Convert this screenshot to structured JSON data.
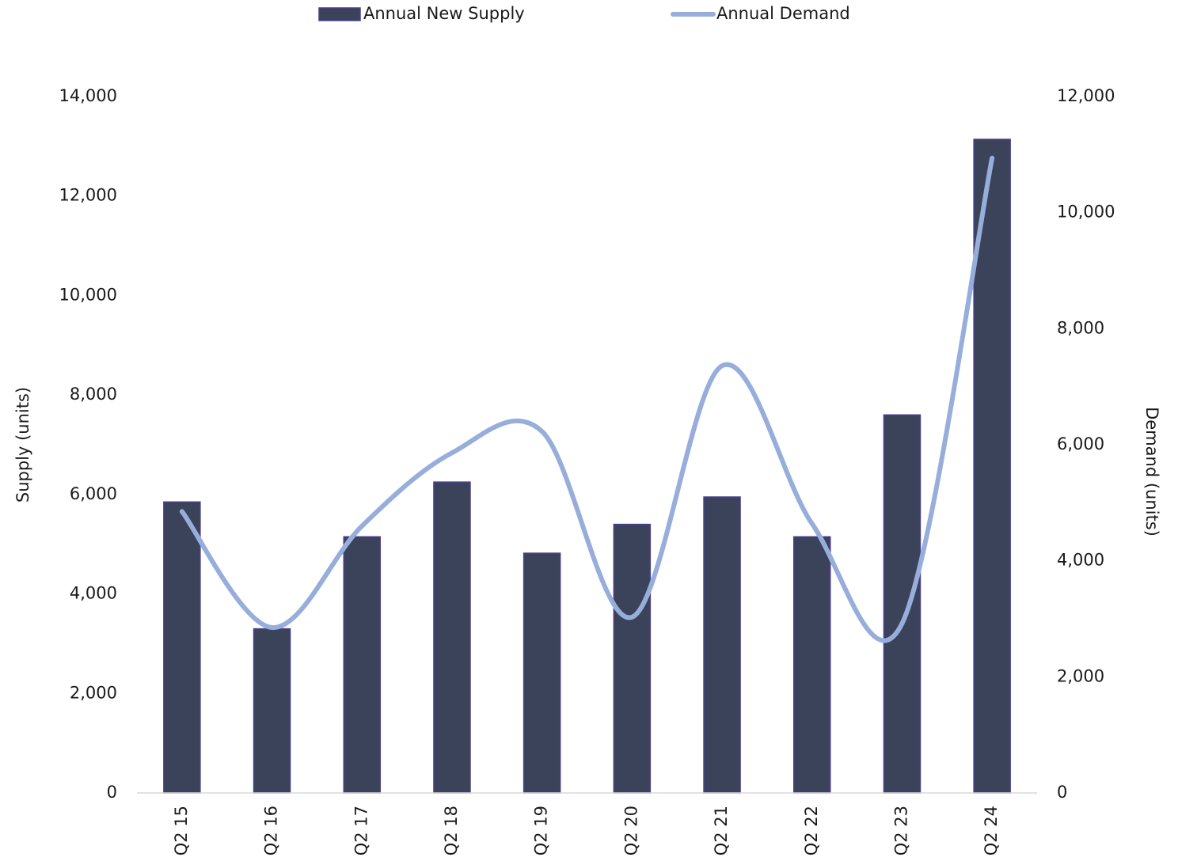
{
  "chart_data": {
    "type": "bar",
    "categories": [
      "Q2 15",
      "Q2 16",
      "Q2 17",
      "Q2 18",
      "Q2 19",
      "Q2 20",
      "Q2 21",
      "Q2 22",
      "Q2 23",
      "Q2 24"
    ],
    "series": [
      {
        "name": "Annual New Supply",
        "type": "bar",
        "color": "#3a4359",
        "values": [
          5850,
          3300,
          5150,
          6250,
          4820,
          5400,
          5950,
          5150,
          7600,
          13140
        ]
      },
      {
        "name": "Annual Demand",
        "type": "line",
        "axis": "y2",
        "color": "#97aedb",
        "values": [
          4850,
          2850,
          4600,
          5860,
          6230,
          3030,
          7360,
          4640,
          2920,
          10940
        ]
      }
    ],
    "y_label": "Supply (units)",
    "y2_label": "Demand (units)",
    "ylim": [
      0,
      14000
    ],
    "yticks": [
      0,
      {
        "value": 2000,
        "label": "2,000"
      },
      {
        "value": 4000,
        "label": "4,000"
      },
      {
        "value": 6000,
        "label": "6,000"
      },
      {
        "value": 8000,
        "label": "8,000"
      },
      {
        "value": 10000,
        "label": "10,000"
      },
      {
        "value": 12000,
        "label": "12,000"
      },
      {
        "value": 14000,
        "label": "14,000"
      }
    ],
    "y2lim": [
      0,
      12000
    ],
    "y2ticks": [
      0,
      {
        "value": 2000,
        "label": "2,000"
      },
      {
        "value": 4000,
        "label": "4,000"
      },
      {
        "value": 6000,
        "label": "6,000"
      },
      {
        "value": 8000,
        "label": "8,000"
      },
      {
        "value": 10000,
        "label": "10,000"
      },
      {
        "value": 12000,
        "label": "12,000"
      }
    ],
    "legend": "top",
    "grid": false
  }
}
